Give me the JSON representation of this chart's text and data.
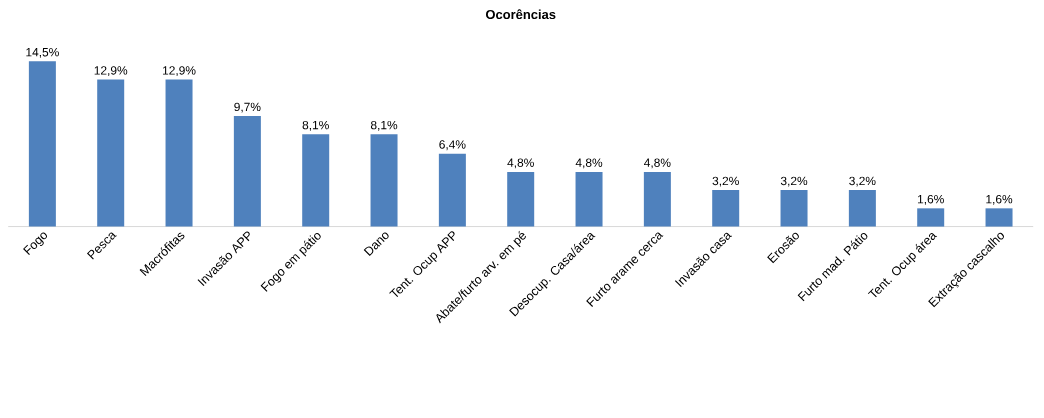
{
  "chart_data": {
    "type": "bar",
    "title": "Ocorências",
    "categories": [
      "Fogo",
      "Pesca",
      "Macrófitas",
      "Invasão APP",
      "Fogo em pátio",
      "Dano",
      "Tent. Ocup APP",
      "Abate/furto arv. em pé",
      "Desocup. Casa/área",
      "Furto arame cerca",
      "Invasão casa",
      "Erosão",
      "Furto mad. Pátio",
      "Tent. Ocup área",
      "Extração cascalho"
    ],
    "values": [
      14.5,
      12.9,
      12.9,
      9.7,
      8.1,
      8.1,
      6.4,
      4.8,
      4.8,
      4.8,
      3.2,
      3.2,
      3.2,
      1.6,
      1.6
    ],
    "value_labels": [
      "14,5%",
      "12,9%",
      "12,9%",
      "9,7%",
      "8,1%",
      "8,1%",
      "6,4%",
      "4,8%",
      "4,8%",
      "4,8%",
      "3,2%",
      "3,2%",
      "3,2%",
      "1,6%",
      "1,6%"
    ],
    "color": "#4f81bd"
  }
}
